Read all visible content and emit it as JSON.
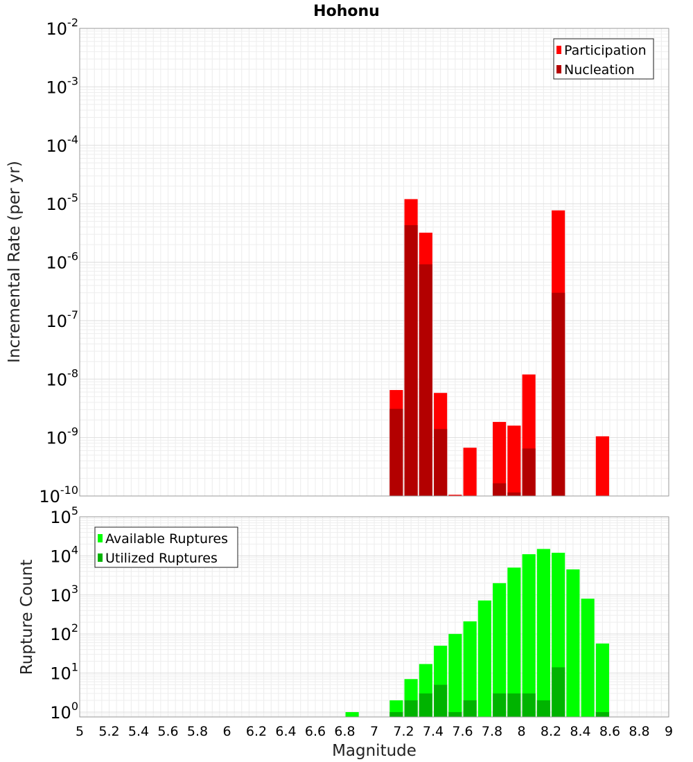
{
  "chart_data": [
    {
      "type": "bar",
      "title": "Hohonu",
      "xlabel": "",
      "ylabel": "Incremental Rate (per yr)",
      "xlim": [
        5,
        9
      ],
      "ylim": [
        1e-10,
        0.01
      ],
      "yscale": "log",
      "y_tick_labels": [
        {
          "base": "10",
          "exp": "-10"
        },
        {
          "base": "10",
          "exp": "-9"
        },
        {
          "base": "10",
          "exp": "-8"
        },
        {
          "base": "10",
          "exp": "-7"
        },
        {
          "base": "10",
          "exp": "-6"
        },
        {
          "base": "10",
          "exp": "-5"
        },
        {
          "base": "10",
          "exp": "-4"
        },
        {
          "base": "10",
          "exp": "-3"
        },
        {
          "base": "10",
          "exp": "-2"
        }
      ],
      "grid": true,
      "legend_position": "top-right",
      "series": [
        {
          "name": "Participation",
          "color": "#ff0000",
          "x": [
            7.15,
            7.25,
            7.35,
            7.45,
            7.55,
            7.65,
            7.85,
            7.95,
            8.05,
            8.25,
            8.55
          ],
          "values": [
            6.5e-09,
            1.2e-05,
            3.2e-06,
            5.8e-09,
            1.05e-10,
            6.7e-10,
            1.85e-09,
            1.6e-09,
            1.2e-08,
            7.7e-06,
            1.05e-09
          ]
        },
        {
          "name": "Nucleation",
          "color": "#b30000",
          "x": [
            7.15,
            7.25,
            7.35,
            7.45,
            7.85,
            7.95,
            8.05,
            8.25
          ],
          "values": [
            3.1e-09,
            4.3e-06,
            9.2e-07,
            1.4e-09,
            1.65e-10,
            1.15e-10,
            6.5e-10,
            3e-07
          ]
        }
      ]
    },
    {
      "type": "bar",
      "title": "",
      "xlabel": "Magnitude",
      "ylabel": "Rupture Count",
      "xlim": [
        5,
        9
      ],
      "ylim": [
        0.75,
        100000.0
      ],
      "yscale": "log",
      "x_tick_labels": [
        "5",
        "5.2",
        "5.4",
        "5.6",
        "5.8",
        "6",
        "6.2",
        "6.4",
        "6.6",
        "6.8",
        "7",
        "7.2",
        "7.4",
        "7.6",
        "7.8",
        "8",
        "8.2",
        "8.4",
        "8.6",
        "8.8",
        "9"
      ],
      "y_tick_labels": [
        {
          "base": "10",
          "exp": "0"
        },
        {
          "base": "10",
          "exp": "1"
        },
        {
          "base": "10",
          "exp": "2"
        },
        {
          "base": "10",
          "exp": "3"
        },
        {
          "base": "10",
          "exp": "4"
        },
        {
          "base": "10",
          "exp": "5"
        }
      ],
      "grid": true,
      "legend_position": "top-left",
      "series": [
        {
          "name": "Available Ruptures",
          "color": "#00ff00",
          "x": [
            6.85,
            7.15,
            7.25,
            7.35,
            7.45,
            7.55,
            7.65,
            7.75,
            7.85,
            7.95,
            8.05,
            8.15,
            8.25,
            8.35,
            8.45,
            8.55
          ],
          "values": [
            1,
            2,
            7,
            17,
            50,
            100,
            210,
            720,
            2000,
            5000,
            11000,
            15000,
            12000,
            4500,
            800,
            57
          ]
        },
        {
          "name": "Utilized Ruptures",
          "color": "#00b300",
          "x": [
            7.15,
            7.25,
            7.35,
            7.45,
            7.55,
            7.65,
            7.85,
            7.95,
            8.05,
            8.15,
            8.25,
            8.55
          ],
          "values": [
            1,
            2,
            3,
            5,
            1,
            2,
            3,
            3,
            3,
            2,
            14,
            1
          ]
        }
      ]
    }
  ]
}
